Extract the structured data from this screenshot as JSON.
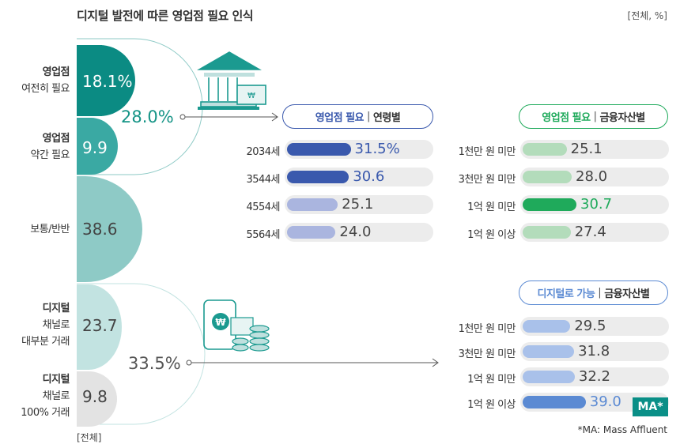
{
  "title": "디지털 발전에 따른 영업점 필요 인식",
  "unit": "[전체, %]",
  "footnote": "[전체]",
  "note": "*MA: Mass Affluent",
  "colors": {
    "teal_dark": "#0b8b83",
    "teal": "#3aa9a3",
    "teal_light": "#8ecac6",
    "pale": "#c2e3e1",
    "gray": "#e3e3e3",
    "age_dark": "#3a59ad",
    "age_light": "#aab5df",
    "asset_light": "#b3dcbb",
    "asset_dark": "#1faa5b",
    "dig_light": "#a9c1ea",
    "dig_dark": "#5b8ad3"
  },
  "left": {
    "segments": [
      {
        "label1": "영업점",
        "label2": "여전히 필요",
        "value": "18.1%"
      },
      {
        "label1": "영업점",
        "label2": "약간 필요",
        "value": "9.9"
      },
      {
        "label1": "보통/반반",
        "value": "38.6"
      },
      {
        "label1": "디지털",
        "label2": "채널로",
        "label3": "대부분 거래",
        "value": "23.7"
      },
      {
        "label1": "디지털",
        "label2": "채널로",
        "label3": "100% 거래",
        "value": "9.8"
      }
    ],
    "need_total": "28.0%",
    "digital_total": "33.5%"
  },
  "pills": {
    "age": {
      "main": "영업점 필요",
      "sep": "|",
      "rest": "연령별"
    },
    "asset": {
      "main": "영업점 필요",
      "sep": "|",
      "rest": "금융자산별"
    },
    "digital": {
      "main": "디지털로 가능",
      "sep": "|",
      "rest": "금융자산별"
    }
  },
  "ma_badge": "MA*",
  "chart_data": [
    {
      "type": "bar",
      "title": "영업점 필요 | 연령별",
      "categories": [
        "2034세",
        "3544세",
        "4554세",
        "5564세"
      ],
      "values": [
        31.5,
        30.6,
        25.1,
        24.0
      ],
      "labels": [
        "31.5%",
        "30.6",
        "25.1",
        "24.0"
      ],
      "xlim": [
        0,
        50
      ]
    },
    {
      "type": "bar",
      "title": "영업점 필요 | 금융자산별",
      "categories": [
        "1천만 원 미만",
        "3천만 원 미만",
        "1억 원 미만",
        "1억 원 이상"
      ],
      "values": [
        25.1,
        28.0,
        30.7,
        27.4
      ],
      "labels": [
        "25.1",
        "28.0",
        "30.7",
        "27.4"
      ],
      "xlim": [
        0,
        50
      ]
    },
    {
      "type": "bar",
      "title": "디지털로 가능 | 금융자산별",
      "categories": [
        "1천만 원 미만",
        "3천만 원 미만",
        "1억 원 미만",
        "1억 원 이상"
      ],
      "values": [
        29.5,
        31.8,
        32.2,
        39.0
      ],
      "labels": [
        "29.5",
        "31.8",
        "32.2",
        "39.0"
      ],
      "xlim": [
        0,
        50
      ]
    }
  ]
}
